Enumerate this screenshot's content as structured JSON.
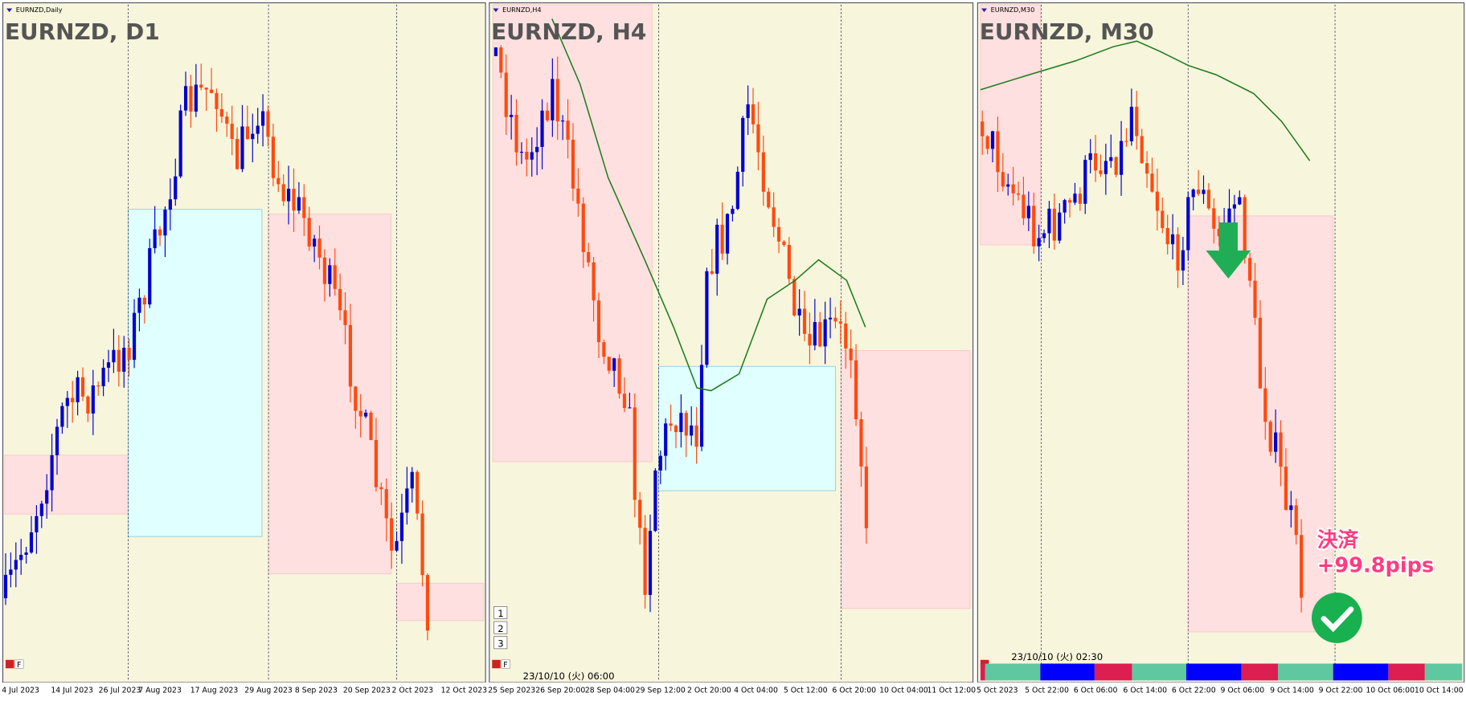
{
  "panels": [
    {
      "symbol": "EURNZD,Daily",
      "title": "EURNZD, D1",
      "toolbar_label": "F",
      "x_labels": [
        "4 Jul 2023",
        "14 Jul 2023",
        "26 Jul 2023",
        "7 Aug 2023",
        "17 Aug 2023",
        "29 Aug 2023",
        "8 Sep 2023",
        "20 Sep 2023",
        "2 Oct 2023",
        "12 Oct 2023"
      ]
    },
    {
      "symbol": "EURNZD,H4",
      "title": "EURNZD, H4",
      "toolbar_label": "F",
      "buttons": [
        "1",
        "2",
        "3"
      ],
      "timestamp": "23/10/10 (火) 06:00",
      "x_labels": [
        "25 Sep 2023",
        "26 Sep 20:00",
        "28 Sep 04:00",
        "29 Sep 12:00",
        "2 Oct 20:00",
        "4 Oct 04:00",
        "5 Oct 12:00",
        "6 Oct 20:00",
        "10 Oct 04:00",
        "11 Oct 12:00"
      ]
    },
    {
      "symbol": "EURNZD,M30",
      "title": "EURNZD, M30",
      "timestamp": "23/10/10 (火) 02:30",
      "x_labels": [
        "5 Oct 2023",
        "5 Oct 22:00",
        "6 Oct 06:00",
        "6 Oct 14:00",
        "6 Oct 22:00",
        "9 Oct 06:00",
        "9 Oct 14:00",
        "9 Oct 22:00",
        "10 Oct 06:00",
        "10 Oct 14:00"
      ]
    }
  ],
  "annotation": {
    "action": "決済",
    "result": "+99.8pips"
  }
}
